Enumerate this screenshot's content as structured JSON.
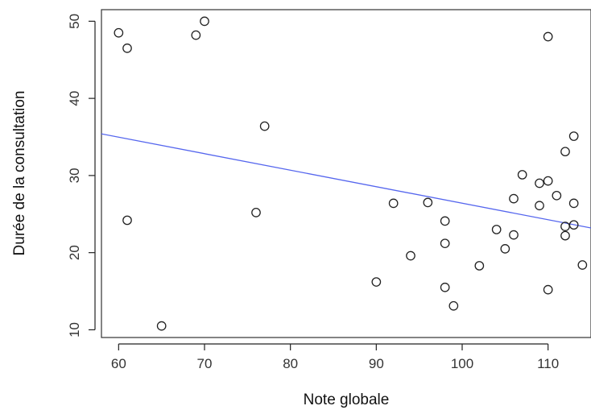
{
  "chart_data": {
    "type": "scatter",
    "title": "",
    "xlabel": "Note globale",
    "ylabel": "Durée de la consultation",
    "xlim": [
      58,
      115
    ],
    "ylim": [
      9,
      51.5
    ],
    "x_ticks": [
      60,
      70,
      80,
      90,
      100,
      110
    ],
    "y_ticks": [
      10,
      20,
      30,
      40,
      50
    ],
    "grid": false,
    "legend": "none",
    "points": [
      {
        "x": 60,
        "y": 48.5
      },
      {
        "x": 61,
        "y": 46.5
      },
      {
        "x": 61,
        "y": 24.2
      },
      {
        "x": 65,
        "y": 10.5
      },
      {
        "x": 69,
        "y": 48.2
      },
      {
        "x": 70,
        "y": 50.0
      },
      {
        "x": 76,
        "y": 25.2
      },
      {
        "x": 77,
        "y": 36.4
      },
      {
        "x": 90,
        "y": 16.2
      },
      {
        "x": 92,
        "y": 26.4
      },
      {
        "x": 94,
        "y": 19.6
      },
      {
        "x": 96,
        "y": 26.5
      },
      {
        "x": 98,
        "y": 24.1
      },
      {
        "x": 98,
        "y": 21.2
      },
      {
        "x": 98,
        "y": 15.5
      },
      {
        "x": 99,
        "y": 13.1
      },
      {
        "x": 102,
        "y": 18.3
      },
      {
        "x": 104,
        "y": 23.0
      },
      {
        "x": 105,
        "y": 20.5
      },
      {
        "x": 106,
        "y": 27.0
      },
      {
        "x": 106,
        "y": 22.3
      },
      {
        "x": 107,
        "y": 30.1
      },
      {
        "x": 109,
        "y": 29.0
      },
      {
        "x": 109,
        "y": 26.1
      },
      {
        "x": 110,
        "y": 48.0
      },
      {
        "x": 110,
        "y": 29.3
      },
      {
        "x": 110,
        "y": 15.2
      },
      {
        "x": 111,
        "y": 27.4
      },
      {
        "x": 112,
        "y": 33.1
      },
      {
        "x": 112,
        "y": 23.4
      },
      {
        "x": 112,
        "y": 22.2
      },
      {
        "x": 113,
        "y": 35.1
      },
      {
        "x": 113,
        "y": 26.4
      },
      {
        "x": 113,
        "y": 23.6
      },
      {
        "x": 114,
        "y": 18.4
      }
    ],
    "regression_line": {
      "color": "#5566ee",
      "start": {
        "x": 58,
        "y": 35.4
      },
      "end": {
        "x": 115,
        "y": 23.2
      }
    },
    "colors": {
      "points": "#222222",
      "line": "#5566ee",
      "box": "#333333"
    }
  }
}
